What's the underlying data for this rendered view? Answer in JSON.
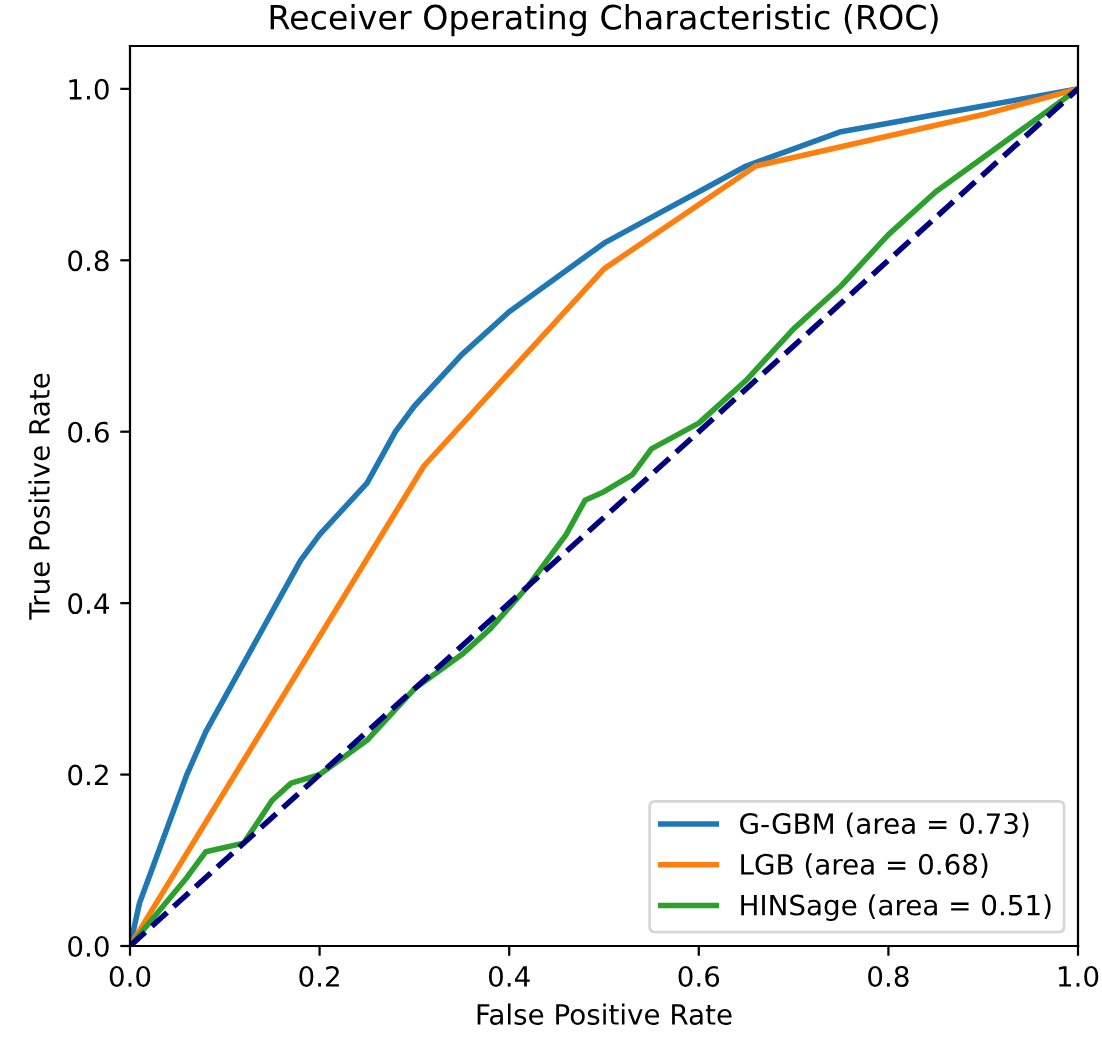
{
  "chart_data": {
    "type": "line",
    "title": "Receiver Operating Characteristic (ROC)",
    "xlabel": "False Positive Rate",
    "ylabel": "True Positive Rate",
    "xlim": [
      0.0,
      1.0
    ],
    "ylim": [
      0.0,
      1.05
    ],
    "xticks": [
      {
        "value": 0,
        "label": "0.0"
      },
      0.2,
      0.4,
      0.6,
      0.8,
      {
        "value": 1,
        "label": "1.0"
      }
    ],
    "yticks": [
      {
        "value": 0,
        "label": "0.0"
      },
      0.2,
      0.4,
      0.6,
      0.8,
      {
        "value": 1,
        "label": "1.0"
      }
    ],
    "grid": false,
    "legend": "bottom right",
    "marker": "none",
    "series": [
      {
        "name": "G-GBM (area = 0.73)",
        "color": "#1f77b4",
        "x": [
          0,
          0.01,
          0.02,
          0.04,
          0.06,
          0.08,
          0.1,
          0.12,
          0.15,
          0.18,
          0.2,
          0.25,
          0.28,
          0.3,
          0.35,
          0.4,
          0.45,
          0.5,
          0.55,
          0.6,
          0.65,
          0.7,
          0.75,
          0.8,
          0.85,
          0.9,
          0.95,
          1
        ],
        "values": [
          0,
          0.05,
          0.08,
          0.14,
          0.2,
          0.25,
          0.29,
          0.33,
          0.39,
          0.45,
          0.48,
          0.54,
          0.6,
          0.63,
          0.69,
          0.74,
          0.78,
          0.82,
          0.85,
          0.88,
          0.91,
          0.93,
          0.95,
          0.96,
          0.97,
          0.98,
          0.99,
          1
        ]
      },
      {
        "name": "LGB (area = 0.68)",
        "color": "#ff7f0e",
        "x": [
          0,
          0.31,
          0.5,
          0.66,
          0.9,
          1
        ],
        "values": [
          0,
          0.56,
          0.79,
          0.91,
          0.97,
          1
        ]
      },
      {
        "name": "HINSage (area = 0.51)",
        "color": "#2ca02c",
        "x": [
          0,
          0.03,
          0.06,
          0.08,
          0.12,
          0.15,
          0.17,
          0.2,
          0.25,
          0.3,
          0.35,
          0.38,
          0.42,
          0.46,
          0.48,
          0.5,
          0.53,
          0.55,
          0.6,
          0.65,
          0.7,
          0.75,
          0.8,
          0.85,
          0.9,
          0.95,
          1
        ],
        "values": [
          0,
          0.04,
          0.08,
          0.11,
          0.12,
          0.17,
          0.19,
          0.2,
          0.24,
          0.3,
          0.34,
          0.37,
          0.42,
          0.48,
          0.52,
          0.53,
          0.55,
          0.58,
          0.61,
          0.66,
          0.72,
          0.77,
          0.83,
          0.88,
          0.92,
          0.96,
          1
        ]
      },
      {
        "color": "#000080",
        "line_style": "dashed",
        "x": [
          0,
          1
        ],
        "values": [
          0,
          1
        ]
      }
    ]
  }
}
